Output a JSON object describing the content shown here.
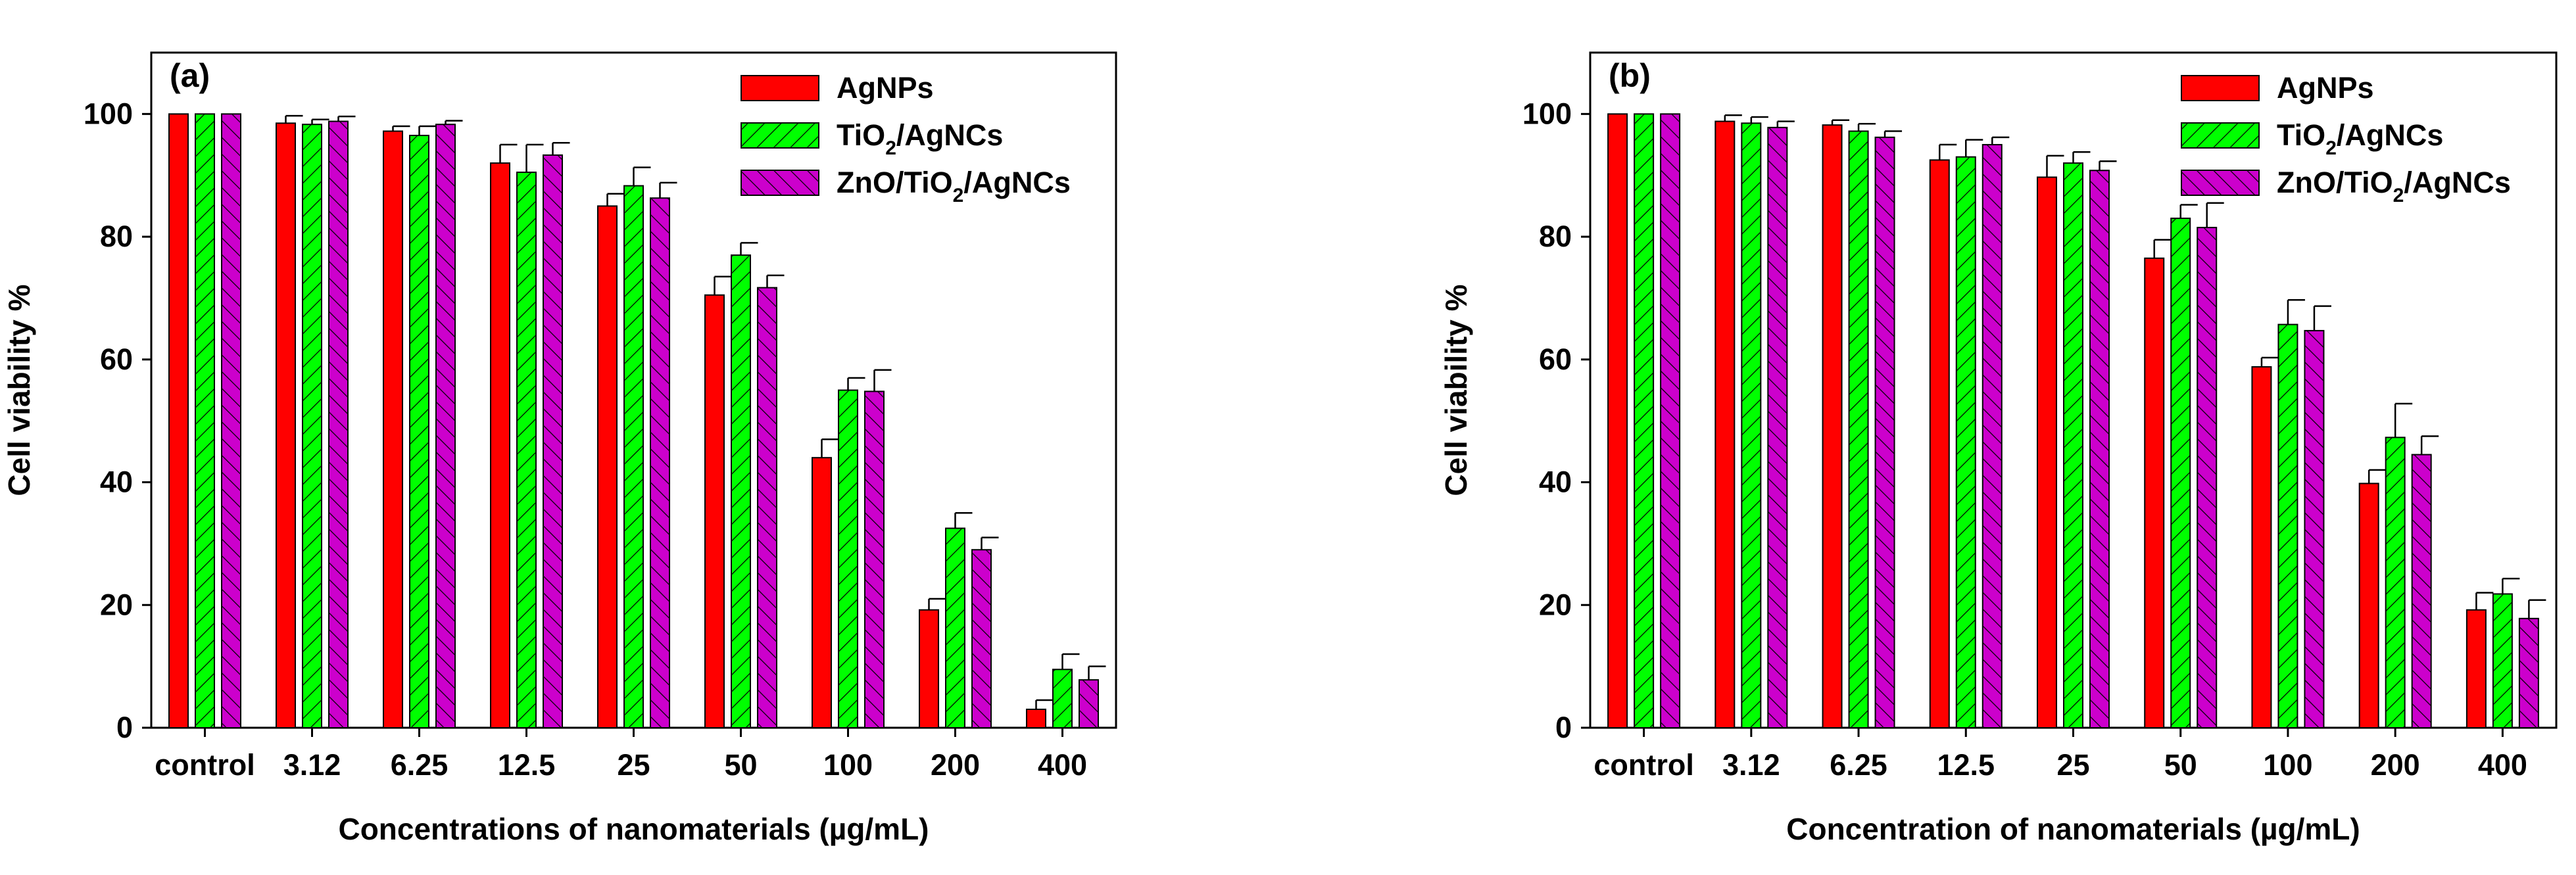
{
  "colors": {
    "AgNPs": "#ff0000",
    "TiO2/AgNCs": "#00ff00",
    "ZnO/TiO2/AgNCs": "#cc00cc"
  },
  "chart_data": [
    {
      "type": "bar",
      "panel_label": "(a)",
      "xlabel": "Concentrations of nanomaterials (µg/mL)",
      "ylabel": "Cell viability %",
      "ylim": [
        0,
        110
      ],
      "yticks": [
        0,
        20,
        40,
        60,
        80,
        100
      ],
      "legend_position": "top-right",
      "categories": [
        "control",
        "3.12",
        "6.25",
        "12.5",
        "25",
        "50",
        "100",
        "200",
        "400"
      ],
      "series": [
        {
          "name": "AgNPs",
          "legend": {
            "pre": "AgNPs"
          },
          "pattern": "solid",
          "values": [
            100,
            98.5,
            97.2,
            92.0,
            85.0,
            70.5,
            44.0,
            19.2,
            3.0
          ],
          "errors": [
            0,
            1.2,
            0.8,
            3.0,
            2.0,
            3.0,
            3.0,
            1.8,
            1.5
          ]
        },
        {
          "name": "TiO2/AgNCs",
          "legend": {
            "pre": "TiO",
            "sub": "2",
            "post": "/AgNCs"
          },
          "pattern": "hatch-left",
          "values": [
            100,
            98.3,
            96.5,
            90.5,
            88.3,
            77.0,
            55.0,
            32.5,
            9.5
          ],
          "errors": [
            0,
            0.8,
            1.5,
            4.5,
            3.0,
            2.0,
            2.0,
            2.5,
            2.5
          ]
        },
        {
          "name": "ZnO/TiO2/AgNCs",
          "legend": {
            "pre": "ZnO/TiO",
            "sub": "2",
            "post": "/AgNCs"
          },
          "pattern": "hatch-right",
          "values": [
            100,
            98.8,
            98.3,
            93.3,
            86.3,
            71.7,
            54.8,
            29.0,
            7.8
          ],
          "errors": [
            0,
            0.8,
            0.6,
            2.0,
            2.5,
            2.0,
            3.5,
            2.0,
            2.2
          ]
        }
      ]
    },
    {
      "type": "bar",
      "panel_label": "(b)",
      "xlabel": "Concentration of nanomaterials (µg/mL)",
      "ylabel": "Cell viability %",
      "ylim": [
        0,
        110
      ],
      "yticks": [
        0,
        20,
        40,
        60,
        80,
        100
      ],
      "legend_position": "top-right",
      "categories": [
        "control",
        "3.12",
        "6.25",
        "12.5",
        "25",
        "50",
        "100",
        "200",
        "400"
      ],
      "series": [
        {
          "name": "AgNPs",
          "legend": {
            "pre": "AgNPs"
          },
          "pattern": "solid",
          "values": [
            100,
            98.8,
            98.2,
            92.5,
            89.7,
            76.5,
            58.8,
            39.8,
            19.2
          ],
          "errors": [
            0,
            1.0,
            0.8,
            2.5,
            3.5,
            3.0,
            1.5,
            2.2,
            2.8
          ]
        },
        {
          "name": "TiO2/AgNCs",
          "legend": {
            "pre": "TiO",
            "sub": "2",
            "post": "/AgNCs"
          },
          "pattern": "hatch-left",
          "values": [
            100,
            98.5,
            97.2,
            93.0,
            92.0,
            83.0,
            65.7,
            47.3,
            21.8
          ],
          "errors": [
            0,
            1.0,
            1.2,
            2.8,
            1.8,
            2.2,
            4.0,
            5.5,
            2.5
          ]
        },
        {
          "name": "ZnO/TiO2/AgNCs",
          "legend": {
            "pre": "ZnO/TiO",
            "sub": "2",
            "post": "/AgNCs"
          },
          "pattern": "hatch-right",
          "values": [
            100,
            97.8,
            96.2,
            95.0,
            90.8,
            81.5,
            64.7,
            44.5,
            17.8
          ],
          "errors": [
            0,
            1.0,
            1.0,
            1.2,
            1.5,
            4.0,
            4.0,
            3.0,
            3.0
          ]
        }
      ]
    }
  ]
}
